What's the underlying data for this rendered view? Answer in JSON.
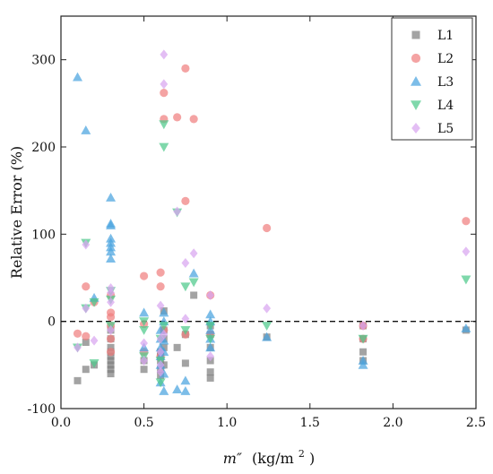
{
  "chart_data": {
    "type": "scatter",
    "title": "",
    "ylabel": "Relative Error (%)",
    "xlabel_italic": "m″",
    "xlabel_units": "(kg/m",
    "xlabel_sup": "2",
    "xlabel_close": ")",
    "xlim": [
      0.0,
      2.5
    ],
    "ylim": [
      -100,
      350
    ],
    "x_ticks": [
      "0.0",
      "0.5",
      "1.0",
      "1.5",
      "2.0",
      "2.5"
    ],
    "y_ticks": [
      "-100",
      "0",
      "100",
      "200",
      "300"
    ],
    "reference_line": {
      "y": 0,
      "style": "dashed"
    },
    "legend_position": "top-right",
    "series": [
      {
        "name": "L1",
        "marker": "square",
        "color": "#7f7f7f",
        "points": [
          [
            0.1,
            -68
          ],
          [
            0.15,
            -55
          ],
          [
            0.15,
            -24
          ],
          [
            0.2,
            -50
          ],
          [
            0.3,
            -60
          ],
          [
            0.3,
            -55
          ],
          [
            0.3,
            -50
          ],
          [
            0.3,
            -45
          ],
          [
            0.3,
            -40
          ],
          [
            0.3,
            -35
          ],
          [
            0.3,
            -30
          ],
          [
            0.3,
            -20
          ],
          [
            0.3,
            -10
          ],
          [
            0.5,
            -55
          ],
          [
            0.5,
            -45
          ],
          [
            0.6,
            -62
          ],
          [
            0.6,
            -55
          ],
          [
            0.6,
            -45
          ],
          [
            0.6,
            -40
          ],
          [
            0.6,
            -35
          ],
          [
            0.62,
            -50
          ],
          [
            0.62,
            -30
          ],
          [
            0.62,
            -20
          ],
          [
            0.62,
            -10
          ],
          [
            0.62,
            12
          ],
          [
            0.7,
            -30
          ],
          [
            0.75,
            -48
          ],
          [
            0.75,
            -15
          ],
          [
            0.8,
            30
          ],
          [
            0.9,
            -65
          ],
          [
            0.9,
            -58
          ],
          [
            0.9,
            -45
          ],
          [
            0.9,
            -30
          ],
          [
            0.9,
            -15
          ],
          [
            0.9,
            -5
          ],
          [
            1.24,
            -18
          ],
          [
            1.82,
            -45
          ],
          [
            1.82,
            -35
          ],
          [
            1.82,
            -20
          ],
          [
            1.82,
            -5
          ],
          [
            2.44,
            -10
          ]
        ]
      },
      {
        "name": "L2",
        "marker": "circle",
        "color": "#f08080",
        "points": [
          [
            0.1,
            -14
          ],
          [
            0.15,
            -17
          ],
          [
            0.15,
            40
          ],
          [
            0.2,
            22
          ],
          [
            0.3,
            -35
          ],
          [
            0.3,
            -20
          ],
          [
            0.3,
            -5
          ],
          [
            0.3,
            5
          ],
          [
            0.3,
            10
          ],
          [
            0.3,
            30
          ],
          [
            0.5,
            -35
          ],
          [
            0.5,
            -3
          ],
          [
            0.5,
            52
          ],
          [
            0.6,
            -40
          ],
          [
            0.6,
            40
          ],
          [
            0.6,
            56
          ],
          [
            0.62,
            -10
          ],
          [
            0.62,
            232
          ],
          [
            0.62,
            262
          ],
          [
            0.7,
            234
          ],
          [
            0.75,
            -15
          ],
          [
            0.75,
            138
          ],
          [
            0.75,
            290
          ],
          [
            0.8,
            232
          ],
          [
            0.9,
            30
          ],
          [
            0.9,
            -15
          ],
          [
            1.24,
            107
          ],
          [
            1.82,
            -20
          ],
          [
            1.82,
            -5
          ],
          [
            2.44,
            115
          ]
        ]
      },
      {
        "name": "L3",
        "marker": "triangle-up",
        "color": "#4aa3df",
        "points": [
          [
            0.1,
            280
          ],
          [
            0.15,
            219
          ],
          [
            0.2,
            27
          ],
          [
            0.3,
            142
          ],
          [
            0.3,
            112
          ],
          [
            0.3,
            110
          ],
          [
            0.3,
            95
          ],
          [
            0.3,
            90
          ],
          [
            0.3,
            85
          ],
          [
            0.3,
            80
          ],
          [
            0.3,
            72
          ],
          [
            0.5,
            10
          ],
          [
            0.5,
            -30
          ],
          [
            0.6,
            -70
          ],
          [
            0.6,
            -50
          ],
          [
            0.6,
            -40
          ],
          [
            0.6,
            -30
          ],
          [
            0.6,
            -20
          ],
          [
            0.6,
            -10
          ],
          [
            0.62,
            -80
          ],
          [
            0.62,
            -60
          ],
          [
            0.62,
            -35
          ],
          [
            0.62,
            -22
          ],
          [
            0.62,
            0
          ],
          [
            0.62,
            10
          ],
          [
            0.7,
            -78
          ],
          [
            0.75,
            -80
          ],
          [
            0.75,
            -68
          ],
          [
            0.8,
            55
          ],
          [
            0.9,
            -30
          ],
          [
            0.9,
            -20
          ],
          [
            0.9,
            -10
          ],
          [
            0.9,
            0
          ],
          [
            0.9,
            8
          ],
          [
            1.24,
            -18
          ],
          [
            1.82,
            -50
          ],
          [
            1.82,
            -45
          ],
          [
            2.44,
            -8
          ]
        ]
      },
      {
        "name": "L4",
        "marker": "triangle-down",
        "color": "#4ec98a",
        "points": [
          [
            0.1,
            -30
          ],
          [
            0.15,
            15
          ],
          [
            0.15,
            90
          ],
          [
            0.2,
            -48
          ],
          [
            0.2,
            22
          ],
          [
            0.3,
            -5
          ],
          [
            0.3,
            25
          ],
          [
            0.3,
            35
          ],
          [
            0.5,
            -40
          ],
          [
            0.5,
            -10
          ],
          [
            0.5,
            0
          ],
          [
            0.6,
            -70
          ],
          [
            0.6,
            -45
          ],
          [
            0.6,
            -20
          ],
          [
            0.62,
            200
          ],
          [
            0.62,
            226
          ],
          [
            0.62,
            -5
          ],
          [
            0.7,
            125
          ],
          [
            0.75,
            40
          ],
          [
            0.75,
            -10
          ],
          [
            0.8,
            45
          ],
          [
            0.9,
            -20
          ],
          [
            0.9,
            -5
          ],
          [
            1.24,
            -5
          ],
          [
            1.82,
            -20
          ],
          [
            2.44,
            48
          ]
        ]
      },
      {
        "name": "L5",
        "marker": "diamond",
        "color": "#d8a5f0",
        "points": [
          [
            0.1,
            -30
          ],
          [
            0.15,
            88
          ],
          [
            0.15,
            15
          ],
          [
            0.2,
            -22
          ],
          [
            0.3,
            38
          ],
          [
            0.3,
            33
          ],
          [
            0.3,
            22
          ],
          [
            0.3,
            -10
          ],
          [
            0.5,
            -25
          ],
          [
            0.5,
            -45
          ],
          [
            0.6,
            -58
          ],
          [
            0.6,
            -50
          ],
          [
            0.6,
            -35
          ],
          [
            0.6,
            -20
          ],
          [
            0.6,
            18
          ],
          [
            0.62,
            272
          ],
          [
            0.62,
            306
          ],
          [
            0.62,
            -15
          ],
          [
            0.7,
            126
          ],
          [
            0.75,
            67
          ],
          [
            0.75,
            3
          ],
          [
            0.8,
            78
          ],
          [
            0.9,
            30
          ],
          [
            0.9,
            -40
          ],
          [
            1.24,
            15
          ],
          [
            1.82,
            -5
          ],
          [
            2.44,
            80
          ]
        ]
      }
    ]
  }
}
